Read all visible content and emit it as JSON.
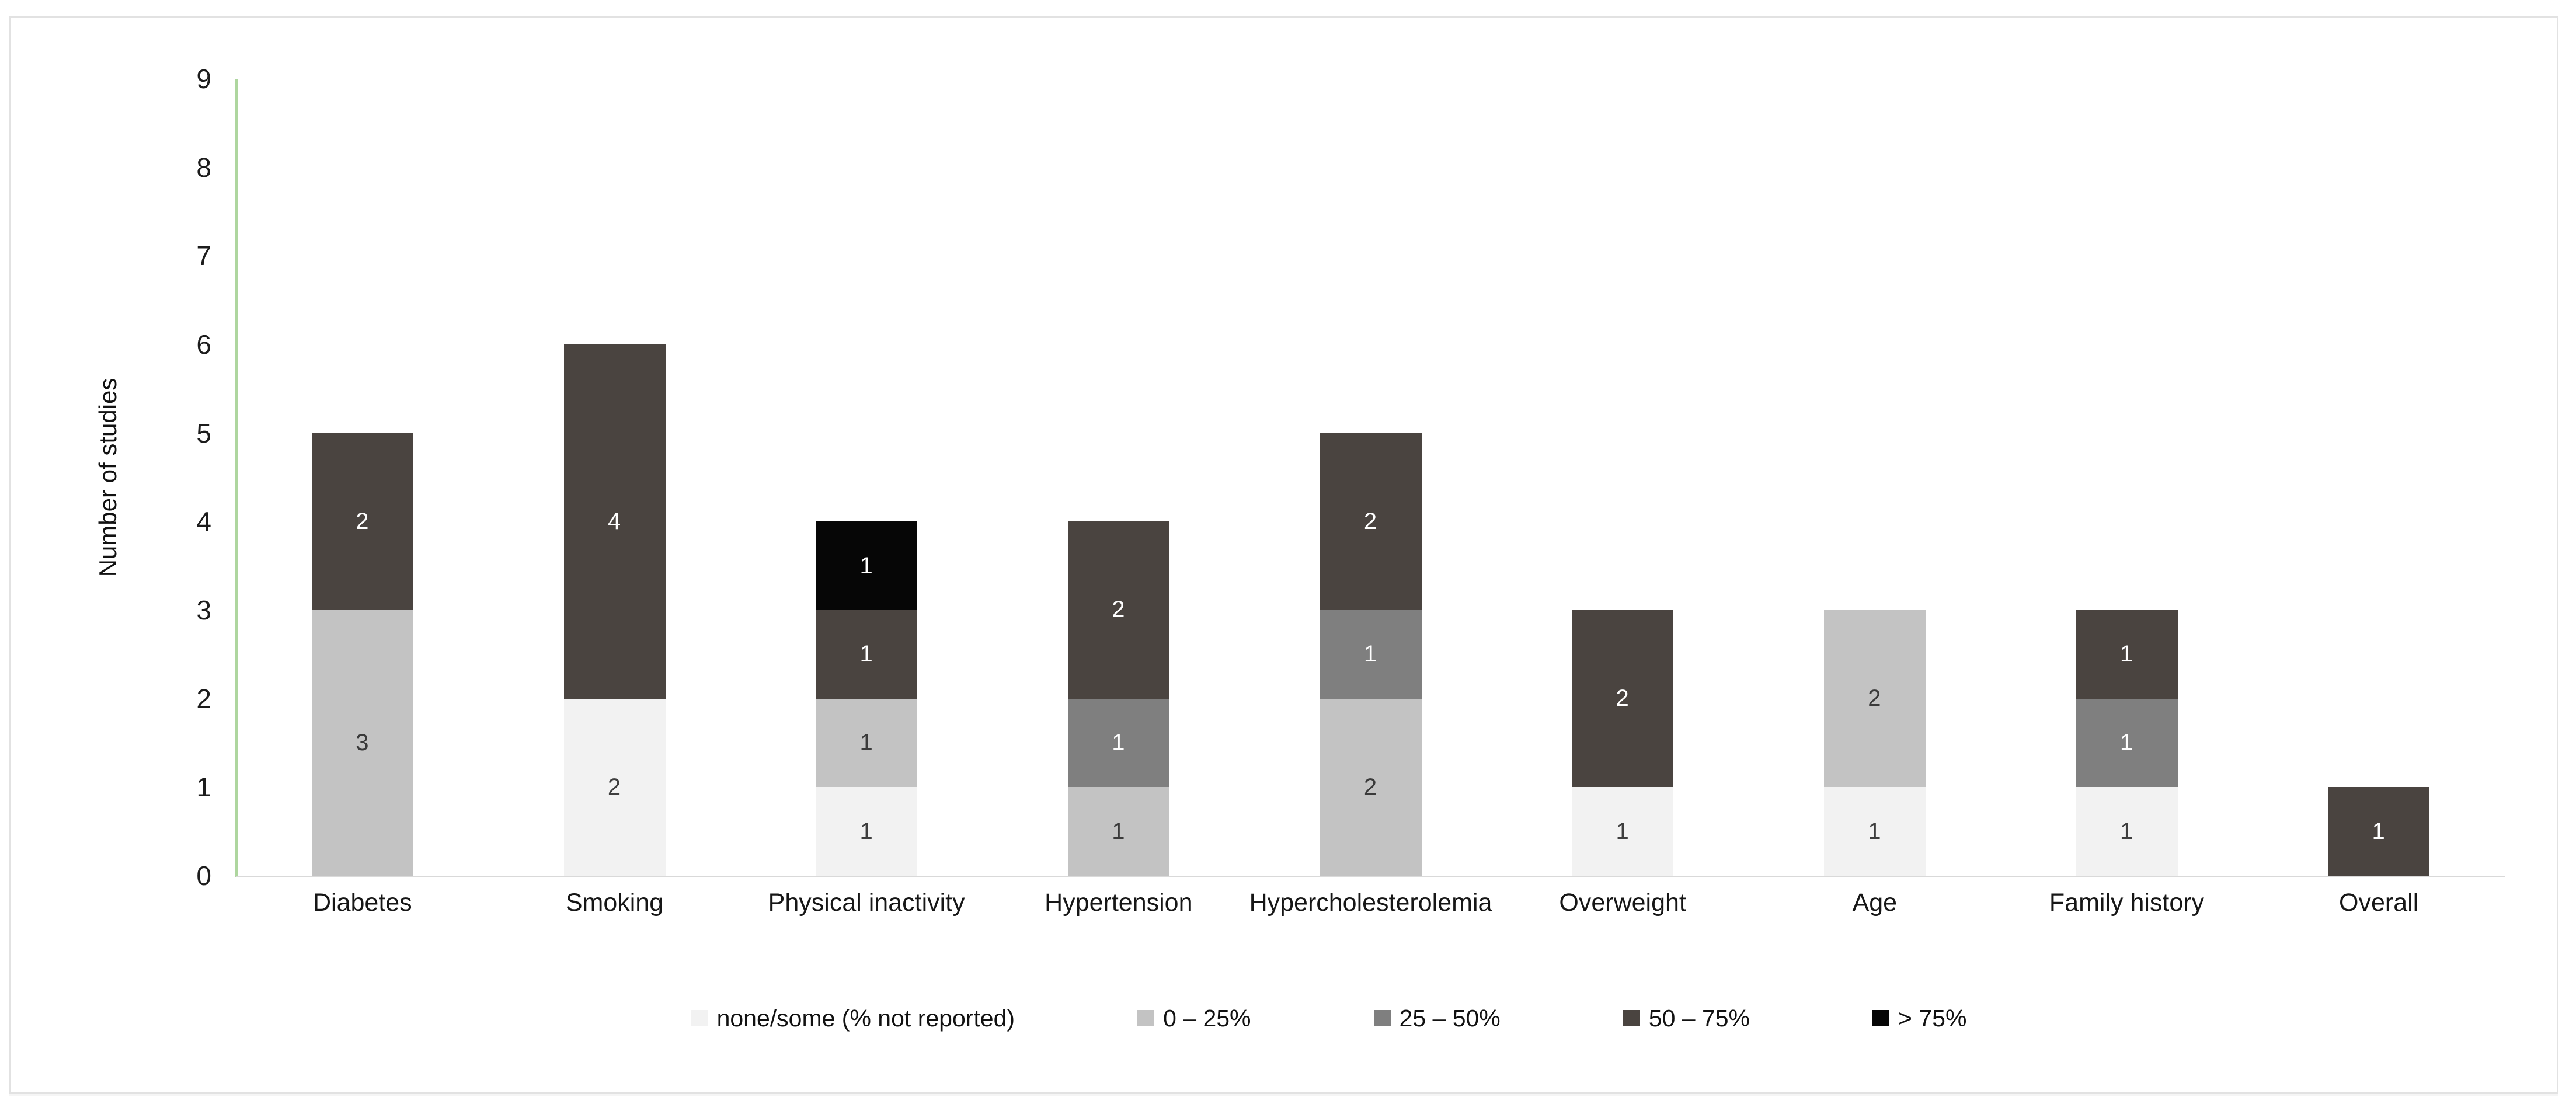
{
  "chart_data": {
    "type": "bar",
    "stacked": true,
    "title": "",
    "xlabel": "",
    "ylabel": "Number of studies",
    "ylim": [
      0,
      9
    ],
    "yticks": [
      0,
      1,
      2,
      3,
      4,
      5,
      6,
      7,
      8,
      9
    ],
    "grid": false,
    "legend_position": "bottom",
    "categories": [
      "Diabetes",
      "Smoking",
      "Physical inactivity",
      "Hypertension",
      "Hypercholesterolemia",
      "Overweight",
      "Age",
      "Family history",
      "Overall"
    ],
    "series": [
      {
        "name": "none/some (% not reported)",
        "color": "#f2f2f2",
        "label_color": "#3e3e3e",
        "values": [
          0,
          2,
          1,
          0,
          0,
          1,
          1,
          1,
          0
        ]
      },
      {
        "name": "0 – 25%",
        "color": "#c3c3c3",
        "label_color": "#3a3a3a",
        "values": [
          3,
          0,
          1,
          1,
          2,
          0,
          2,
          0,
          0
        ]
      },
      {
        "name": "25 – 50%",
        "color": "#7f7f7f",
        "label_color": "#ffffff",
        "values": [
          0,
          0,
          0,
          1,
          1,
          0,
          0,
          1,
          0
        ]
      },
      {
        "name": "50 – 75%",
        "color": "#4a4440",
        "label_color": "#ffffff",
        "values": [
          2,
          4,
          1,
          2,
          2,
          2,
          0,
          1,
          1
        ]
      },
      {
        "name": "> 75%",
        "color": "#060606",
        "label_color": "#ffffff",
        "values": [
          0,
          0,
          1,
          0,
          0,
          0,
          0,
          0,
          0
        ]
      }
    ],
    "axis_colors": {
      "y_axis_line": "#aed69f",
      "x_axis_line": "#d9d9d9"
    }
  }
}
